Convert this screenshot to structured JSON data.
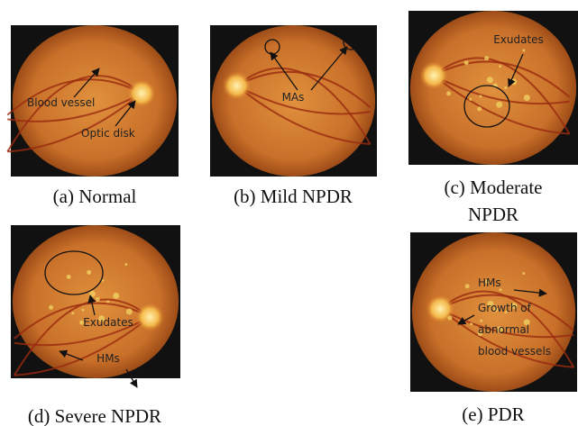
{
  "panels": [
    {
      "caption": [
        "(a) Normal"
      ],
      "annotations": [
        "Blood vessel",
        "Optic disk"
      ]
    },
    {
      "caption": [
        "(b) Mild NPDR"
      ],
      "annotations": [
        "MAs"
      ]
    },
    {
      "caption": [
        "(c) Moderate",
        "NPDR"
      ],
      "annotations": [
        "Exudates"
      ]
    },
    {
      "caption": [
        "(d) Severe NPDR"
      ],
      "annotations": [
        "Exudates",
        "HMs"
      ]
    },
    {
      "caption": [
        "(e) PDR"
      ],
      "annotations": [
        "HMs",
        "Growth of",
        "abnormal",
        "blood vessels"
      ]
    }
  ]
}
